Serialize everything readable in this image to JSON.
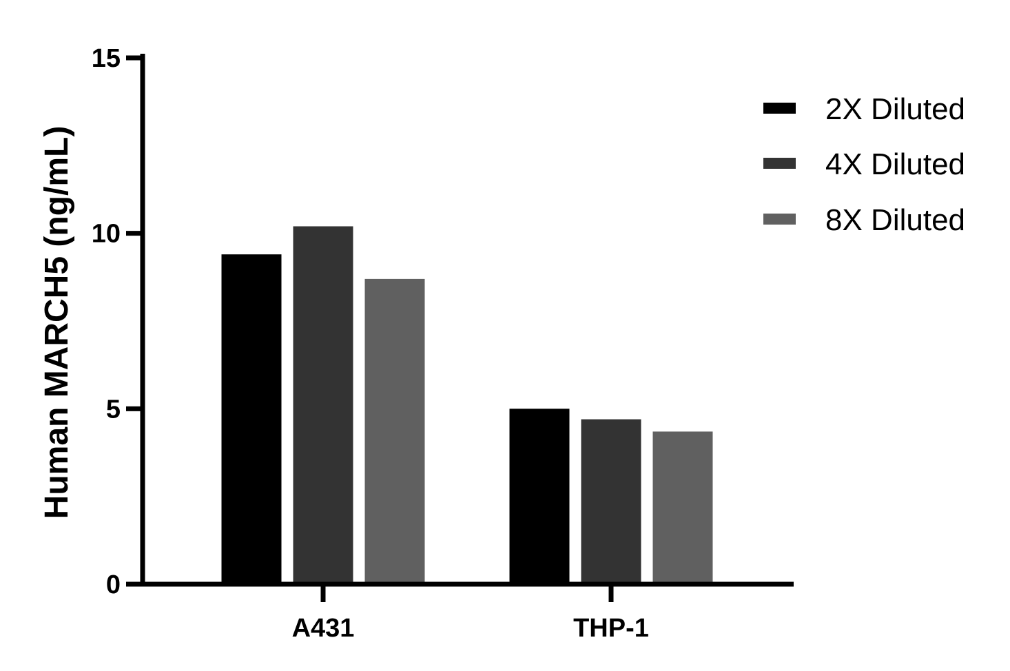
{
  "chart_data": {
    "type": "bar",
    "title": "",
    "xlabel": "",
    "ylabel": "Human MARCH5 (ng/mL)",
    "categories": [
      "A431",
      "THP-1"
    ],
    "ylim": [
      0,
      15
    ],
    "yticks": [
      0,
      5,
      10,
      15
    ],
    "grid": false,
    "legend_position": "top-right",
    "series": [
      {
        "name": "2X Diluted",
        "color": "#000000",
        "values": [
          9.4,
          5.0
        ]
      },
      {
        "name": "4X Diluted",
        "color": "#333333",
        "values": [
          10.2,
          4.7
        ]
      },
      {
        "name": "8X Diluted",
        "color": "#606060",
        "values": [
          8.7,
          4.35
        ]
      }
    ]
  }
}
